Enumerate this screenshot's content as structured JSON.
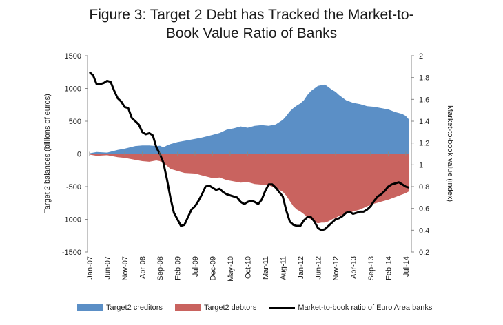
{
  "chart_data": {
    "type": "area",
    "title": "Figure 3: Target 2 Debt has Tracked the Market-to-Book Value Ratio of Banks",
    "title_lines": [
      "Figure 3: Target 2 Debt has Tracked the Market-to-",
      "Book Value Ratio of Banks"
    ],
    "ylabel": "Target 2 balances (billions of euros)",
    "y2label": "Market-to-book value (index)",
    "xlabel": "",
    "ylim": [
      -1500,
      1500
    ],
    "y2lim": [
      0.2,
      2
    ],
    "yticks": [
      "1500",
      "1000",
      "500",
      "0",
      "-500",
      "-1000",
      "-1500"
    ],
    "y2ticks": [
      "2",
      "1.8",
      "1.6",
      "1.4",
      "1.2",
      "1",
      "0.8",
      "0.6",
      "0.4",
      "0.2"
    ],
    "xticks": [
      "Jan-07",
      "Jun-07",
      "Nov-07",
      "Apr-08",
      "Sep-08",
      "Feb-09",
      "Jul-09",
      "Dec-09",
      "May-10",
      "Oct-10",
      "Mar-11",
      "Aug-11",
      "Jan-12",
      "Jun-12",
      "Nov-12",
      "Apr-13",
      "Sep-13",
      "Feb-14",
      "Jul-14"
    ],
    "grid": false,
    "legend_position": "bottom",
    "colors": {
      "creditors": "#5b8fc6",
      "debtors": "#c9635f",
      "ratio": "#000000"
    },
    "series": [
      {
        "name": "Target2 creditors",
        "axis": "left",
        "x": [
          "2007-01",
          "2007-03",
          "2007-06",
          "2007-09",
          "2007-11",
          "2008-02",
          "2008-04",
          "2008-06",
          "2008-08",
          "2008-09",
          "2008-10",
          "2008-11",
          "2008-12",
          "2009-02",
          "2009-04",
          "2009-07",
          "2009-09",
          "2009-12",
          "2010-02",
          "2010-04",
          "2010-06",
          "2010-08",
          "2010-10",
          "2010-12",
          "2011-02",
          "2011-04",
          "2011-06",
          "2011-08",
          "2011-09",
          "2011-10",
          "2011-11",
          "2011-12",
          "2012-01",
          "2012-02",
          "2012-03",
          "2012-04",
          "2012-05",
          "2012-06",
          "2012-07",
          "2012-08",
          "2012-09",
          "2012-10",
          "2012-11",
          "2012-12",
          "2013-02",
          "2013-04",
          "2013-06",
          "2013-08",
          "2013-10",
          "2013-12",
          "2014-02",
          "2014-04",
          "2014-06",
          "2014-07",
          "2014-08"
        ],
        "values": [
          10,
          30,
          20,
          60,
          80,
          120,
          130,
          130,
          120,
          125,
          100,
          130,
          150,
          180,
          200,
          230,
          250,
          290,
          320,
          370,
          390,
          420,
          400,
          430,
          440,
          430,
          450,
          520,
          580,
          650,
          700,
          740,
          770,
          820,
          900,
          960,
          1000,
          1040,
          1050,
          1060,
          1020,
          980,
          950,
          900,
          820,
          780,
          760,
          730,
          720,
          700,
          680,
          640,
          610,
          580,
          520
        ]
      },
      {
        "name": "Target2 debtors",
        "axis": "left",
        "x": [
          "2007-01",
          "2007-03",
          "2007-06",
          "2007-09",
          "2007-11",
          "2008-02",
          "2008-04",
          "2008-06",
          "2008-08",
          "2008-09",
          "2008-10",
          "2008-11",
          "2008-12",
          "2009-02",
          "2009-04",
          "2009-07",
          "2009-09",
          "2009-12",
          "2010-02",
          "2010-04",
          "2010-06",
          "2010-08",
          "2010-10",
          "2010-12",
          "2011-02",
          "2011-04",
          "2011-06",
          "2011-08",
          "2011-09",
          "2011-10",
          "2011-11",
          "2011-12",
          "2012-01",
          "2012-02",
          "2012-03",
          "2012-04",
          "2012-05",
          "2012-06",
          "2012-07",
          "2012-08",
          "2012-09",
          "2012-10",
          "2012-11",
          "2012-12",
          "2013-02",
          "2013-04",
          "2013-06",
          "2013-08",
          "2013-10",
          "2013-12",
          "2014-02",
          "2014-04",
          "2014-06",
          "2014-07",
          "2014-08"
        ],
        "values": [
          -10,
          -30,
          -20,
          -50,
          -60,
          -90,
          -110,
          -120,
          -100,
          -110,
          -150,
          -180,
          -230,
          -260,
          -290,
          -300,
          -330,
          -370,
          -360,
          -400,
          -420,
          -440,
          -430,
          -460,
          -470,
          -480,
          -520,
          -580,
          -640,
          -720,
          -800,
          -850,
          -880,
          -920,
          -970,
          -1000,
          -1040,
          -1060,
          -1050,
          -1050,
          -1030,
          -1000,
          -980,
          -950,
          -920,
          -880,
          -850,
          -800,
          -760,
          -730,
          -700,
          -660,
          -620,
          -600,
          -570
        ]
      },
      {
        "name": "Market-to-book ratio of Euro Area banks",
        "axis": "right",
        "x": [
          "2007-01",
          "2007-02",
          "2007-03",
          "2007-04",
          "2007-05",
          "2007-06",
          "2007-07",
          "2007-08",
          "2007-09",
          "2007-10",
          "2007-11",
          "2007-12",
          "2008-01",
          "2008-02",
          "2008-03",
          "2008-04",
          "2008-05",
          "2008-06",
          "2008-07",
          "2008-08",
          "2008-09",
          "2008-10",
          "2008-11",
          "2008-12",
          "2009-01",
          "2009-02",
          "2009-03",
          "2009-04",
          "2009-05",
          "2009-06",
          "2009-07",
          "2009-08",
          "2009-09",
          "2009-10",
          "2009-11",
          "2009-12",
          "2010-01",
          "2010-02",
          "2010-03",
          "2010-04",
          "2010-05",
          "2010-06",
          "2010-07",
          "2010-08",
          "2010-09",
          "2010-10",
          "2010-11",
          "2010-12",
          "2011-01",
          "2011-02",
          "2011-03",
          "2011-04",
          "2011-05",
          "2011-06",
          "2011-07",
          "2011-08",
          "2011-09",
          "2011-10",
          "2011-11",
          "2011-12",
          "2012-01",
          "2012-02",
          "2012-03",
          "2012-04",
          "2012-05",
          "2012-06",
          "2012-07",
          "2012-08",
          "2012-09",
          "2012-10",
          "2012-11",
          "2012-12",
          "2013-01",
          "2013-02",
          "2013-03",
          "2013-04",
          "2013-05",
          "2013-06",
          "2013-07",
          "2013-08",
          "2013-09",
          "2013-10",
          "2013-11",
          "2013-12",
          "2014-01",
          "2014-02",
          "2014-03",
          "2014-04",
          "2014-05",
          "2014-06",
          "2014-07",
          "2014-08"
        ],
        "values": [
          1.85,
          1.82,
          1.74,
          1.74,
          1.75,
          1.77,
          1.76,
          1.68,
          1.61,
          1.58,
          1.53,
          1.52,
          1.43,
          1.4,
          1.37,
          1.3,
          1.28,
          1.29,
          1.27,
          1.16,
          1.1,
          1.02,
          0.87,
          0.7,
          0.56,
          0.5,
          0.44,
          0.45,
          0.52,
          0.59,
          0.62,
          0.67,
          0.73,
          0.8,
          0.81,
          0.79,
          0.77,
          0.78,
          0.75,
          0.73,
          0.72,
          0.71,
          0.7,
          0.66,
          0.64,
          0.66,
          0.67,
          0.66,
          0.64,
          0.68,
          0.76,
          0.82,
          0.82,
          0.79,
          0.75,
          0.71,
          0.58,
          0.48,
          0.45,
          0.44,
          0.44,
          0.49,
          0.52,
          0.52,
          0.48,
          0.42,
          0.4,
          0.41,
          0.44,
          0.47,
          0.5,
          0.51,
          0.53,
          0.56,
          0.57,
          0.55,
          0.56,
          0.57,
          0.57,
          0.59,
          0.62,
          0.67,
          0.71,
          0.73,
          0.76,
          0.8,
          0.82,
          0.83,
          0.84,
          0.82,
          0.8,
          0.79
        ]
      }
    ]
  }
}
